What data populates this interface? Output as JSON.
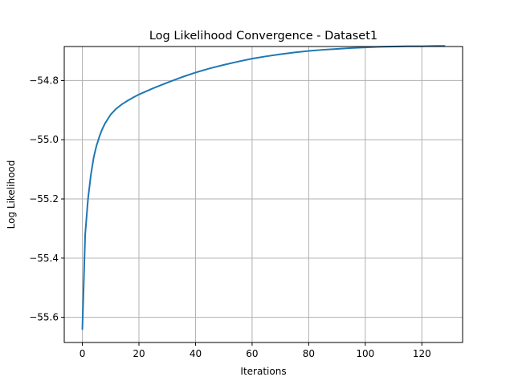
{
  "chart_data": {
    "type": "line",
    "title": "Log Likelihood Convergence - Dataset1",
    "xlabel": "Iterations",
    "ylabel": "Log Likelihood",
    "xlim": [
      -6.4,
      134.4
    ],
    "ylim": [
      -55.685,
      -54.685
    ],
    "xticks": [
      0,
      20,
      40,
      60,
      80,
      100,
      120
    ],
    "xtick_labels": [
      "0",
      "20",
      "40",
      "60",
      "80",
      "100",
      "120"
    ],
    "yticks": [
      -55.6,
      -55.4,
      -55.2,
      -55.0,
      -54.8
    ],
    "ytick_labels": [
      "−55.6",
      "−55.4",
      "−55.2",
      "−55.0",
      "−54.8"
    ],
    "grid": true,
    "series": [
      {
        "color": "#1f77b4",
        "x": [
          0,
          1,
          2,
          3,
          4,
          5,
          6,
          7,
          8,
          9,
          10,
          12,
          14,
          16,
          18,
          20,
          25,
          30,
          35,
          40,
          45,
          50,
          55,
          60,
          65,
          70,
          75,
          80,
          85,
          90,
          95,
          100,
          105,
          110,
          115,
          120,
          125,
          128
        ],
        "y": [
          -55.64,
          -55.32,
          -55.2,
          -55.12,
          -55.06,
          -55.02,
          -54.99,
          -54.965,
          -54.945,
          -54.93,
          -54.915,
          -54.895,
          -54.88,
          -54.868,
          -54.857,
          -54.847,
          -54.826,
          -54.807,
          -54.789,
          -54.773,
          -54.759,
          -54.747,
          -54.736,
          -54.726,
          -54.718,
          -54.711,
          -54.705,
          -54.7,
          -54.696,
          -54.693,
          -54.69,
          -54.688,
          -54.686,
          -54.685,
          -54.684,
          -54.684,
          -54.683,
          -54.683
        ]
      }
    ]
  }
}
